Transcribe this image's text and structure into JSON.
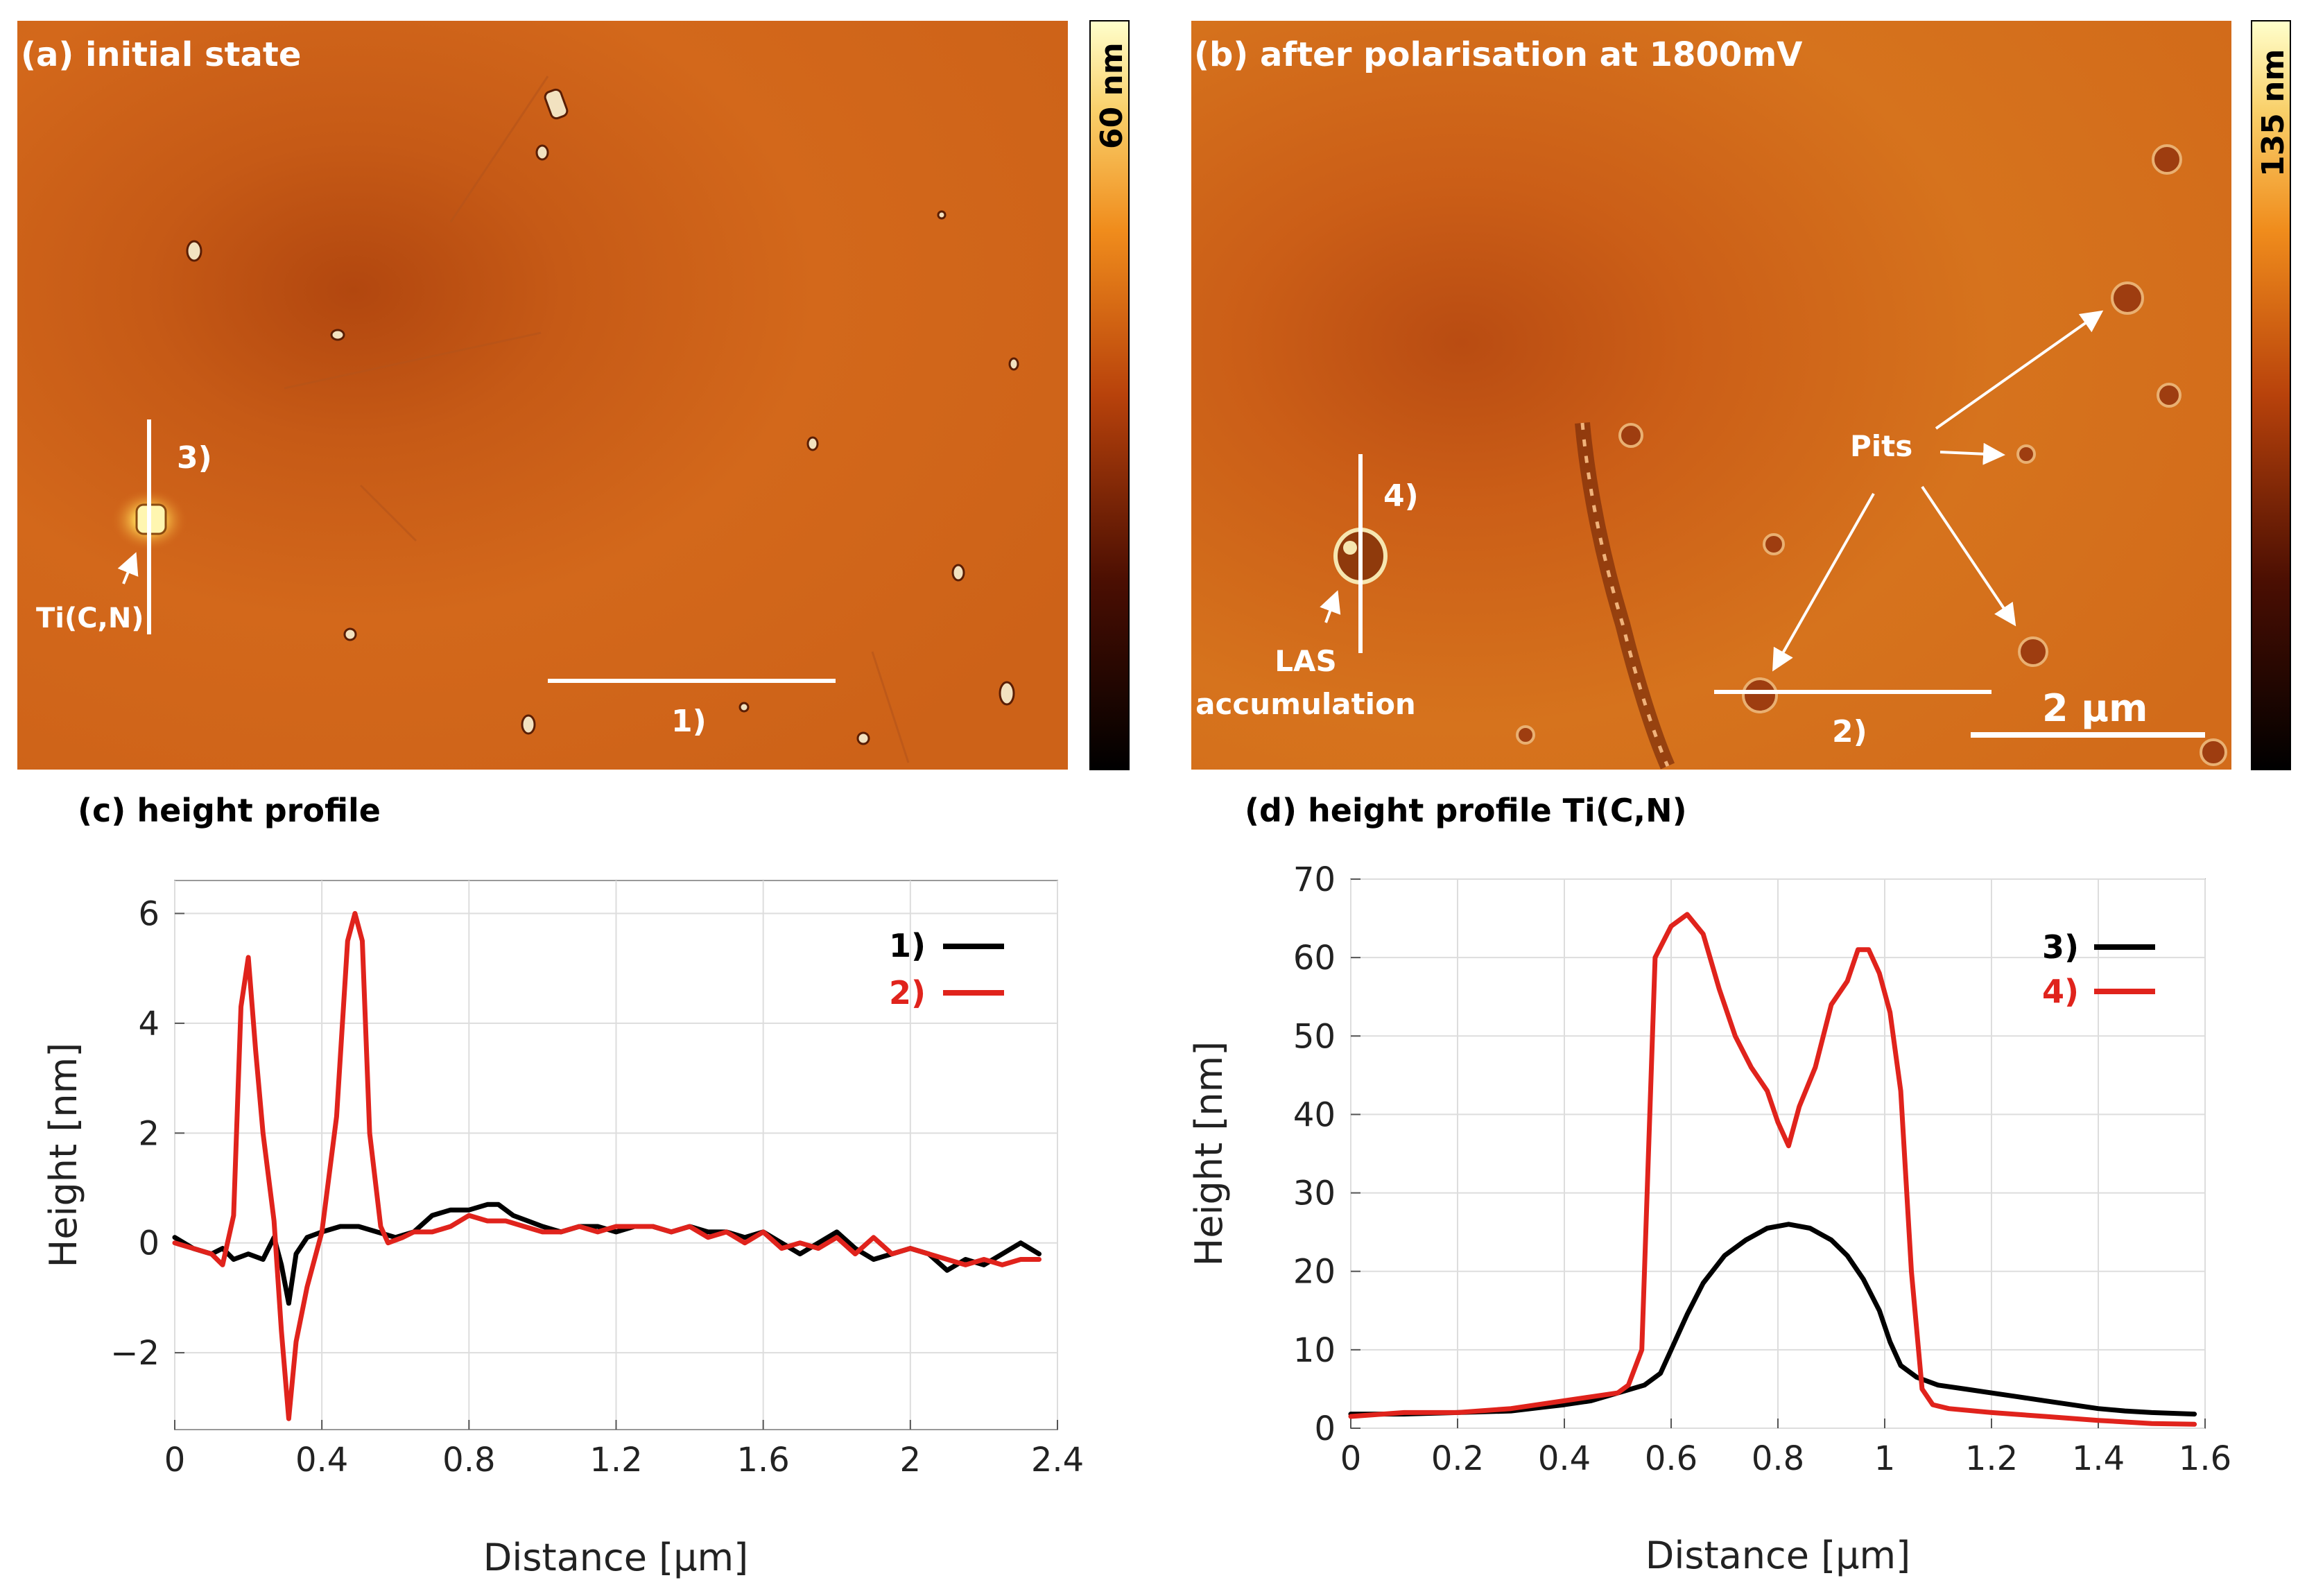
{
  "colors": {
    "surface": "#d2691c",
    "surface_dark": "#b94d12",
    "line_black": "#000000",
    "line_red": "#e0231c",
    "annotation": "#ffffff"
  },
  "panel_a": {
    "title": "(a) initial state",
    "colorbar_label": "60 nm",
    "line_1": "1)",
    "line_3": "3)",
    "particle_label": "Ti(C,N)"
  },
  "panel_b": {
    "title": "(b) after polarisation at 1800mV",
    "colorbar_label": "135 nm",
    "line_2": "2)",
    "line_4": "4)",
    "pits_label": "Pits",
    "las_label_1": "LAS",
    "las_label_2": "accumulation",
    "scalebar_label": "2 µm"
  },
  "chart_data": [
    {
      "type": "line",
      "title": "(c) height profile",
      "xlabel": "Distance [µm]",
      "ylabel": "Height [nm]",
      "xlim": [
        0,
        2.4
      ],
      "ylim": [
        -3.4,
        6.6
      ],
      "xticks": [
        0,
        0.4,
        0.8,
        1.2,
        1.6,
        2,
        2.4
      ],
      "xtick_labels": [
        "0",
        "0.4",
        "0.8",
        "1.2",
        "1.6",
        "2",
        "2.4"
      ],
      "yticks": [
        -2,
        0,
        2,
        4,
        6
      ],
      "ytick_labels": [
        "−2",
        "0",
        "2",
        "4",
        "6"
      ],
      "grid": true,
      "legend_position": "top-right",
      "series": [
        {
          "name": "1)",
          "color": "#000000",
          "x": [
            0,
            0.05,
            0.1,
            0.13,
            0.16,
            0.2,
            0.24,
            0.27,
            0.29,
            0.31,
            0.33,
            0.36,
            0.4,
            0.45,
            0.5,
            0.55,
            0.6,
            0.65,
            0.7,
            0.75,
            0.8,
            0.85,
            0.88,
            0.92,
            0.96,
            1.0,
            1.05,
            1.1,
            1.15,
            1.2,
            1.25,
            1.3,
            1.35,
            1.4,
            1.45,
            1.5,
            1.55,
            1.6,
            1.65,
            1.7,
            1.75,
            1.8,
            1.85,
            1.9,
            1.95,
            2.0,
            2.05,
            2.1,
            2.15,
            2.2,
            2.25,
            2.3,
            2.35
          ],
          "y": [
            0.1,
            -0.1,
            -0.2,
            -0.1,
            -0.3,
            -0.2,
            -0.3,
            0.1,
            -0.4,
            -1.1,
            -0.2,
            0.1,
            0.2,
            0.3,
            0.3,
            0.2,
            0.1,
            0.2,
            0.5,
            0.6,
            0.6,
            0.7,
            0.7,
            0.5,
            0.4,
            0.3,
            0.2,
            0.3,
            0.3,
            0.2,
            0.3,
            0.3,
            0.2,
            0.3,
            0.2,
            0.2,
            0.1,
            0.2,
            0.0,
            -0.2,
            0.0,
            0.2,
            -0.1,
            -0.3,
            -0.2,
            -0.1,
            -0.2,
            -0.5,
            -0.3,
            -0.4,
            -0.2,
            0.0,
            -0.2
          ]
        },
        {
          "name": "2)",
          "color": "#e0231c",
          "x": [
            0,
            0.05,
            0.1,
            0.13,
            0.16,
            0.18,
            0.2,
            0.22,
            0.24,
            0.27,
            0.29,
            0.31,
            0.33,
            0.36,
            0.4,
            0.44,
            0.47,
            0.49,
            0.51,
            0.53,
            0.56,
            0.58,
            0.62,
            0.65,
            0.7,
            0.75,
            0.8,
            0.85,
            0.9,
            0.95,
            1.0,
            1.05,
            1.1,
            1.15,
            1.2,
            1.25,
            1.3,
            1.35,
            1.4,
            1.45,
            1.5,
            1.55,
            1.6,
            1.65,
            1.7,
            1.75,
            1.8,
            1.85,
            1.9,
            1.95,
            2.0,
            2.05,
            2.1,
            2.15,
            2.2,
            2.25,
            2.3,
            2.35
          ],
          "y": [
            0.0,
            -0.1,
            -0.2,
            -0.4,
            0.5,
            4.3,
            5.2,
            3.5,
            2.0,
            0.4,
            -1.6,
            -3.2,
            -1.8,
            -0.8,
            0.2,
            2.3,
            5.5,
            6.0,
            5.5,
            2.0,
            0.3,
            0.0,
            0.1,
            0.2,
            0.2,
            0.3,
            0.5,
            0.4,
            0.4,
            0.3,
            0.2,
            0.2,
            0.3,
            0.2,
            0.3,
            0.3,
            0.3,
            0.2,
            0.3,
            0.1,
            0.2,
            0.0,
            0.2,
            -0.1,
            0.0,
            -0.1,
            0.1,
            -0.2,
            0.1,
            -0.2,
            -0.1,
            -0.2,
            -0.3,
            -0.4,
            -0.3,
            -0.4,
            -0.3,
            -0.3
          ]
        }
      ]
    },
    {
      "type": "line",
      "title": "(d) height profile Ti(C,N)",
      "xlabel": "Distance [µm]",
      "ylabel": "Height [nm]",
      "xlim": [
        0,
        1.6
      ],
      "ylim": [
        0,
        70
      ],
      "xticks": [
        0,
        0.2,
        0.4,
        0.6,
        0.8,
        1,
        1.2,
        1.4,
        1.6
      ],
      "xtick_labels": [
        "0",
        "0.2",
        "0.4",
        "0.6",
        "0.8",
        "1",
        "1.2",
        "1.4",
        "1.6"
      ],
      "yticks": [
        0,
        10,
        20,
        30,
        40,
        50,
        60,
        70
      ],
      "ytick_labels": [
        "0",
        "10",
        "20",
        "30",
        "40",
        "50",
        "60",
        "70"
      ],
      "grid": true,
      "legend_position": "top-right",
      "series": [
        {
          "name": "3)",
          "color": "#000000",
          "x": [
            0,
            0.1,
            0.2,
            0.3,
            0.4,
            0.45,
            0.5,
            0.55,
            0.58,
            0.6,
            0.63,
            0.66,
            0.7,
            0.74,
            0.78,
            0.82,
            0.86,
            0.9,
            0.93,
            0.96,
            0.99,
            1.01,
            1.03,
            1.06,
            1.1,
            1.15,
            1.2,
            1.25,
            1.3,
            1.35,
            1.4,
            1.45,
            1.5,
            1.58
          ],
          "y": [
            1.8,
            1.8,
            2.0,
            2.2,
            3.0,
            3.5,
            4.5,
            5.5,
            7.0,
            10.0,
            14.5,
            18.5,
            22.0,
            24.0,
            25.5,
            26.0,
            25.5,
            24.0,
            22.0,
            19.0,
            15.0,
            11.0,
            8.0,
            6.5,
            5.5,
            5.0,
            4.5,
            4.0,
            3.5,
            3.0,
            2.5,
            2.2,
            2.0,
            1.8
          ]
        },
        {
          "name": "4)",
          "color": "#e0231c",
          "x": [
            0,
            0.1,
            0.2,
            0.3,
            0.4,
            0.45,
            0.5,
            0.52,
            0.545,
            0.57,
            0.6,
            0.63,
            0.66,
            0.69,
            0.72,
            0.75,
            0.78,
            0.8,
            0.82,
            0.84,
            0.87,
            0.9,
            0.93,
            0.95,
            0.97,
            0.99,
            1.01,
            1.03,
            1.05,
            1.07,
            1.09,
            1.12,
            1.2,
            1.3,
            1.4,
            1.5,
            1.58
          ],
          "y": [
            1.5,
            2.0,
            2.0,
            2.5,
            3.5,
            4.0,
            4.5,
            5.5,
            10.0,
            60.0,
            64.0,
            65.5,
            63.0,
            56.0,
            50.0,
            46.0,
            43.0,
            39.0,
            36.0,
            41.0,
            46.0,
            54.0,
            57.0,
            61.0,
            61.0,
            58.0,
            53.0,
            43.0,
            20.0,
            5.0,
            3.0,
            2.5,
            2.0,
            1.5,
            1.0,
            0.6,
            0.5
          ]
        }
      ]
    }
  ]
}
